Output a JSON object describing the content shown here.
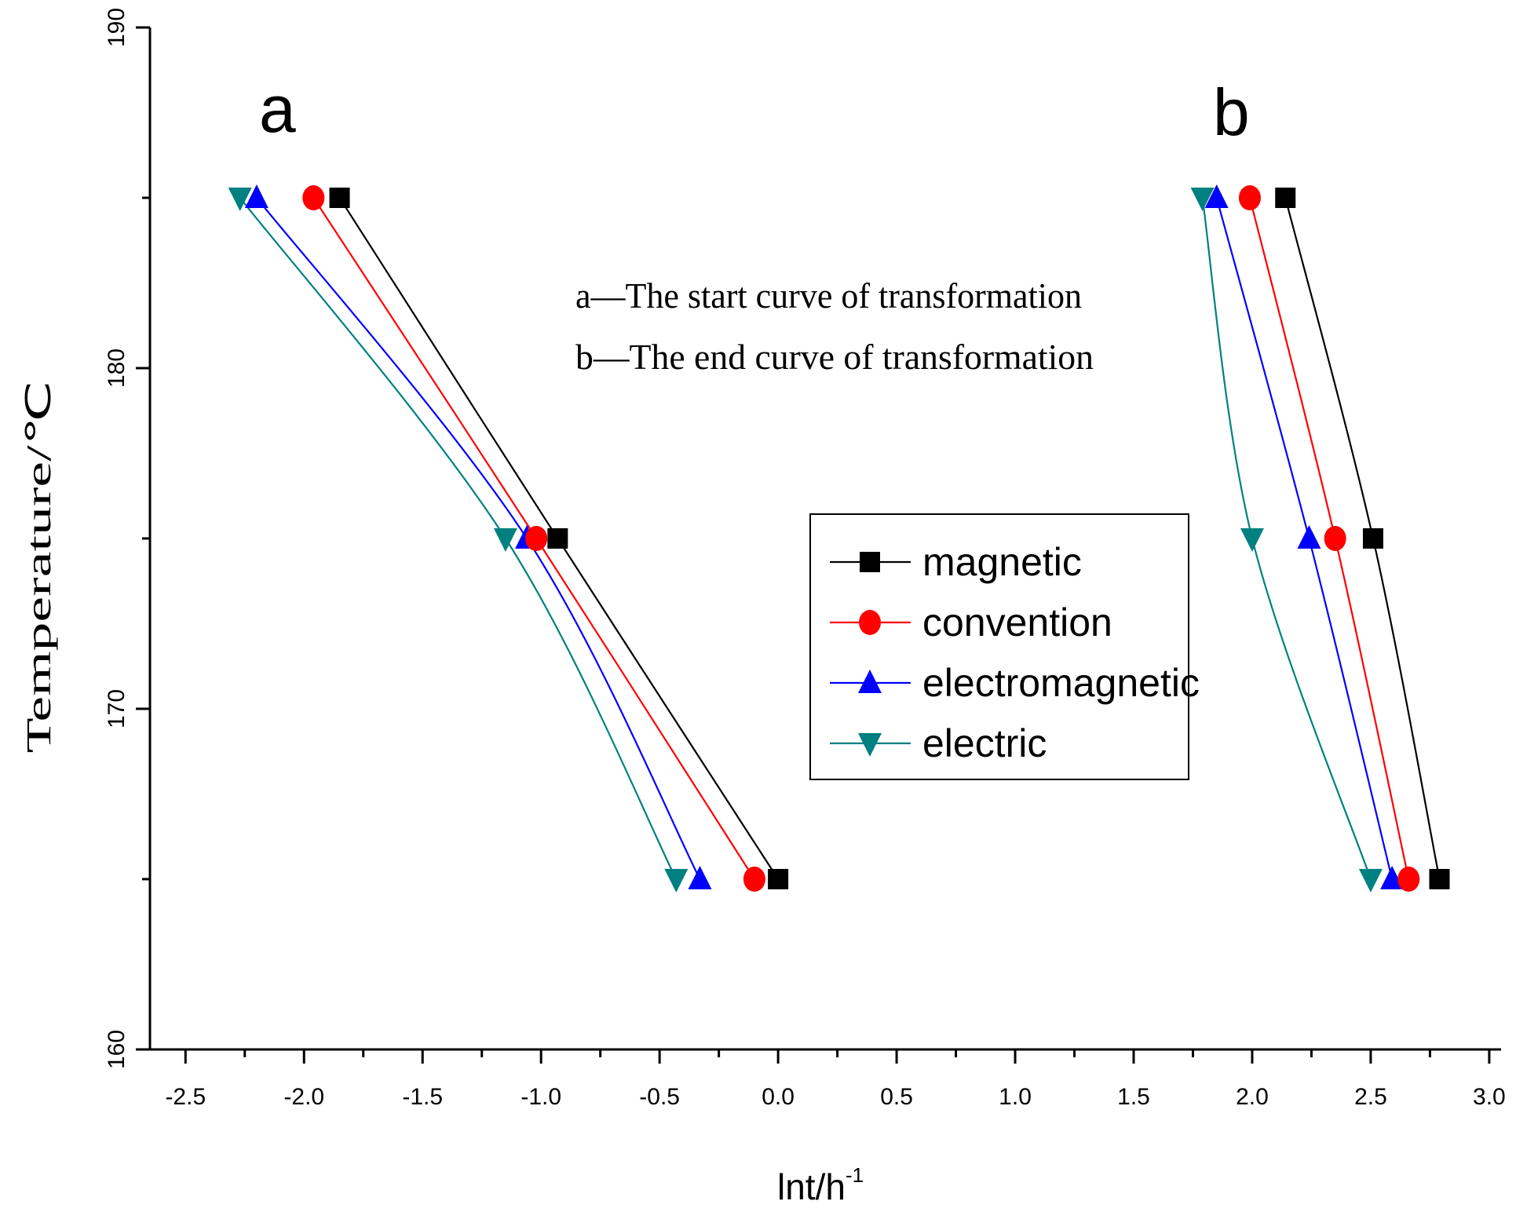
{
  "chart_data": {
    "type": "line",
    "title": "",
    "xlabel": "lnt/h",
    "xlabel_superscript": "-1",
    "ylabel": "Temperature/℃",
    "xlim": [
      -2.65,
      3.05
    ],
    "ylim": [
      160,
      190
    ],
    "xticks": [
      -2.5,
      -2.0,
      -1.5,
      -1.0,
      -0.5,
      0.0,
      0.5,
      1.0,
      1.5,
      2.0,
      2.5,
      3.0
    ],
    "xtick_labels": [
      "-2.5",
      "-2.0",
      "-1.5",
      "-1.0",
      "-0.5",
      "0.0",
      "0.5",
      "1.0",
      "1.5",
      "2.0",
      "2.5",
      "3.0"
    ],
    "yticks": [
      160,
      170,
      180,
      190
    ],
    "ytick_labels": [
      "160",
      "170",
      "180",
      "190"
    ],
    "grid": false,
    "legend_position": "center-right",
    "labels": {
      "a": "a",
      "b": "b"
    },
    "annotations": [
      "a—The start curve of transformation",
      "b—The  end  curve of transformation"
    ],
    "series": [
      {
        "name": "magnetic",
        "color": "#000000",
        "marker": "square",
        "start_curve": [
          [
            -1.85,
            185
          ],
          [
            -0.93,
            175
          ],
          [
            0.0,
            165
          ]
        ],
        "end_curve": [
          [
            2.14,
            185
          ],
          [
            2.51,
            175
          ],
          [
            2.79,
            165
          ]
        ]
      },
      {
        "name": "convention",
        "color": "#ff0000",
        "marker": "circle",
        "start_curve": [
          [
            -1.96,
            185
          ],
          [
            -1.02,
            175
          ],
          [
            -0.1,
            165
          ]
        ],
        "end_curve": [
          [
            1.99,
            185
          ],
          [
            2.35,
            175
          ],
          [
            2.66,
            165
          ]
        ]
      },
      {
        "name": "electromagnetic",
        "color": "#0000ff",
        "marker": "triangle-up",
        "start_curve": [
          [
            -2.2,
            185
          ],
          [
            -1.06,
            175
          ],
          [
            -0.33,
            165
          ]
        ],
        "end_curve": [
          [
            1.85,
            185
          ],
          [
            2.24,
            175
          ],
          [
            2.59,
            165
          ]
        ]
      },
      {
        "name": "electric",
        "color": "#008080",
        "marker": "triangle-down",
        "start_curve": [
          [
            -2.27,
            185
          ],
          [
            -1.15,
            175
          ],
          [
            -0.43,
            165
          ]
        ],
        "end_curve": [
          [
            1.79,
            185
          ],
          [
            2.0,
            175
          ],
          [
            2.5,
            165
          ]
        ]
      }
    ]
  }
}
